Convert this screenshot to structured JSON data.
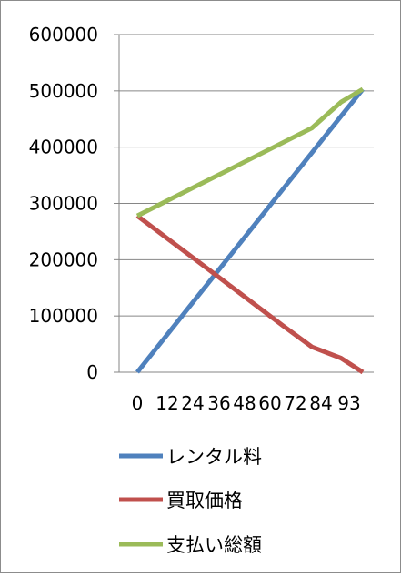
{
  "chart_data": {
    "type": "line",
    "title": "",
    "xlabel": "",
    "ylabel": "",
    "x": [
      0,
      12,
      24,
      36,
      48,
      60,
      72,
      84,
      93
    ],
    "x_tick_labels": [
      "0",
      "12",
      "24",
      "36",
      "48",
      "60",
      "72",
      "84",
      "93"
    ],
    "ylim": [
      0,
      600000
    ],
    "y_tick_labels": [
      "600000",
      "500000",
      "400000",
      "300000",
      "200000",
      "100000",
      "0"
    ],
    "grid": "horizontal",
    "legend_position": "bottom",
    "series": [
      {
        "name": "レンタル料",
        "color": "#4f81bd",
        "values": [
          0,
          65000,
          130000,
          195000,
          260000,
          325000,
          390000,
          455000,
          503000
        ]
      },
      {
        "name": "買取価格",
        "color": "#c0504d",
        "values": [
          278000,
          239000,
          200000,
          161000,
          122000,
          83000,
          45000,
          25000,
          0
        ]
      },
      {
        "name": "支払い総額",
        "color": "#9bbb59",
        "values": [
          278000,
          304000,
          330000,
          356000,
          382000,
          408000,
          434000,
          480000,
          503000
        ]
      }
    ]
  }
}
